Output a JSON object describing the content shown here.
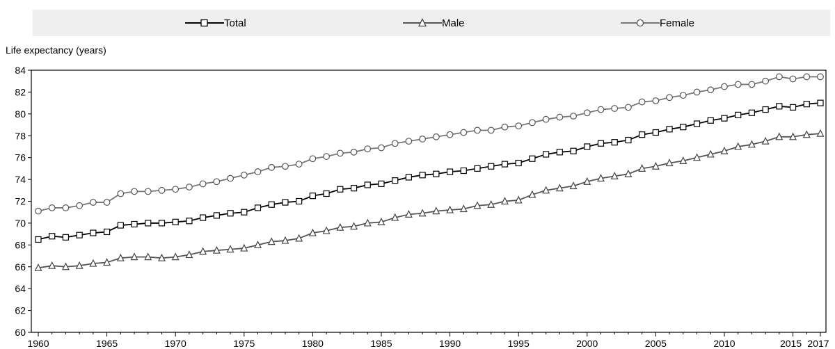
{
  "chart_data": {
    "type": "line",
    "ylabel": "Life expectancy (years)",
    "xlabel": "",
    "ylim": [
      60,
      84
    ],
    "yticks": [
      60,
      62,
      64,
      66,
      68,
      70,
      72,
      74,
      76,
      78,
      80,
      82,
      84
    ],
    "xlim": [
      1960,
      2017
    ],
    "xtick_labels": [
      "1960",
      "1965",
      "1970",
      "1975",
      "1980",
      "1985",
      "1990",
      "1995",
      "2000",
      "2005",
      "2010",
      "2015",
      "2017"
    ],
    "legend_position": "top",
    "grid": false,
    "x": [
      1960,
      1961,
      1962,
      1963,
      1964,
      1965,
      1966,
      1967,
      1968,
      1969,
      1970,
      1971,
      1972,
      1973,
      1974,
      1975,
      1976,
      1977,
      1978,
      1979,
      1980,
      1981,
      1982,
      1983,
      1984,
      1985,
      1986,
      1987,
      1988,
      1989,
      1990,
      1991,
      1992,
      1993,
      1994,
      1995,
      1996,
      1997,
      1998,
      1999,
      2000,
      2001,
      2002,
      2003,
      2004,
      2005,
      2006,
      2007,
      2008,
      2009,
      2010,
      2011,
      2012,
      2013,
      2014,
      2015,
      2016,
      2017
    ],
    "series": [
      {
        "name": "Total",
        "marker": "square",
        "values": [
          68.5,
          68.8,
          68.7,
          68.9,
          69.1,
          69.2,
          69.8,
          69.9,
          70.0,
          70.0,
          70.1,
          70.2,
          70.5,
          70.7,
          70.9,
          71.0,
          71.4,
          71.7,
          71.9,
          72.0,
          72.5,
          72.7,
          73.1,
          73.2,
          73.5,
          73.6,
          73.9,
          74.2,
          74.4,
          74.5,
          74.7,
          74.8,
          75.0,
          75.2,
          75.4,
          75.5,
          75.9,
          76.3,
          76.5,
          76.6,
          77.0,
          77.3,
          77.4,
          77.6,
          78.1,
          78.3,
          78.6,
          78.8,
          79.1,
          79.4,
          79.6,
          79.9,
          80.1,
          80.4,
          80.7,
          80.6,
          80.9,
          81.0
        ]
      },
      {
        "name": "Male",
        "marker": "triangle",
        "values": [
          65.9,
          66.1,
          66.0,
          66.1,
          66.3,
          66.4,
          66.8,
          66.9,
          66.9,
          66.8,
          66.9,
          67.1,
          67.4,
          67.5,
          67.6,
          67.7,
          68.0,
          68.3,
          68.4,
          68.6,
          69.1,
          69.3,
          69.6,
          69.7,
          70.0,
          70.1,
          70.5,
          70.8,
          70.9,
          71.1,
          71.2,
          71.3,
          71.6,
          71.7,
          72.0,
          72.1,
          72.6,
          73.0,
          73.2,
          73.4,
          73.8,
          74.1,
          74.3,
          74.5,
          75.0,
          75.2,
          75.5,
          75.7,
          76.0,
          76.3,
          76.6,
          77.0,
          77.2,
          77.5,
          77.9,
          77.9,
          78.1,
          78.2
        ]
      },
      {
        "name": "Female",
        "marker": "circle",
        "values": [
          71.1,
          71.4,
          71.4,
          71.6,
          71.9,
          71.9,
          72.7,
          72.9,
          72.9,
          73.0,
          73.1,
          73.3,
          73.6,
          73.8,
          74.1,
          74.4,
          74.7,
          75.1,
          75.2,
          75.4,
          75.9,
          76.1,
          76.4,
          76.5,
          76.8,
          76.9,
          77.3,
          77.5,
          77.7,
          77.9,
          78.1,
          78.3,
          78.5,
          78.5,
          78.8,
          78.9,
          79.2,
          79.5,
          79.7,
          79.8,
          80.1,
          80.4,
          80.5,
          80.6,
          81.1,
          81.2,
          81.5,
          81.7,
          82.0,
          82.2,
          82.5,
          82.7,
          82.7,
          83.0,
          83.4,
          83.2,
          83.4,
          83.4
        ]
      }
    ]
  }
}
